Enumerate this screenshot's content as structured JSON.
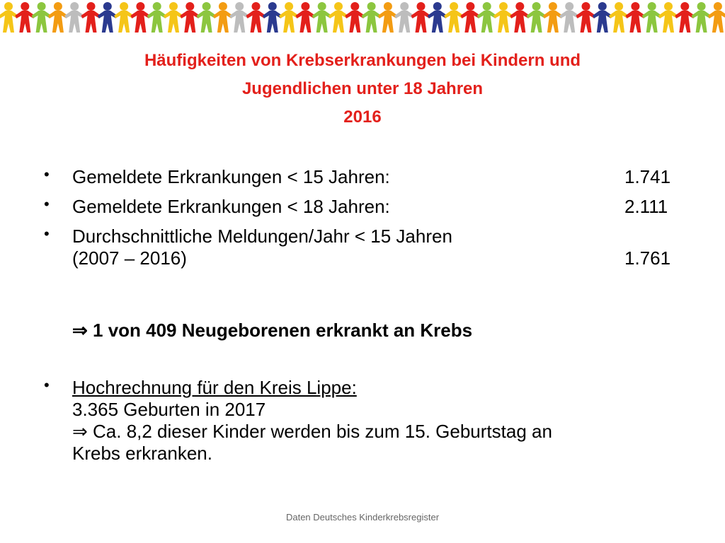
{
  "title": {
    "lines": [
      "Häufigkeiten von Krebserkrankungen bei Kindern und",
      "Jugendlichen unter 18 Jahren",
      "2016"
    ]
  },
  "stats": [
    {
      "label": [
        "Gemeldete Erkrankungen  < 15 Jahren:"
      ],
      "value": "1.741"
    },
    {
      "label": [
        "Gemeldete Erkrankungen  < 18 Jahren:"
      ],
      "value": "2.111"
    },
    {
      "label": [
        "Durchschnittliche Meldungen/Jahr < 15 Jahren",
        "(2007 – 2016)"
      ],
      "value": "1.761"
    }
  ],
  "conclusion": "⇒ 1 von 409 Neugeborenen erkrankt an Krebs",
  "projection": {
    "heading": "Hochrechnung für den Kreis Lippe:",
    "lines": [
      "3.365 Geburten in 2017",
      "⇒ Ca. 8,2 dieser Kinder werden bis zum 15. Geburtstag an",
      "Krebs erkranken."
    ]
  },
  "footer": "Daten Deutsches Kinderkrebsregister"
}
